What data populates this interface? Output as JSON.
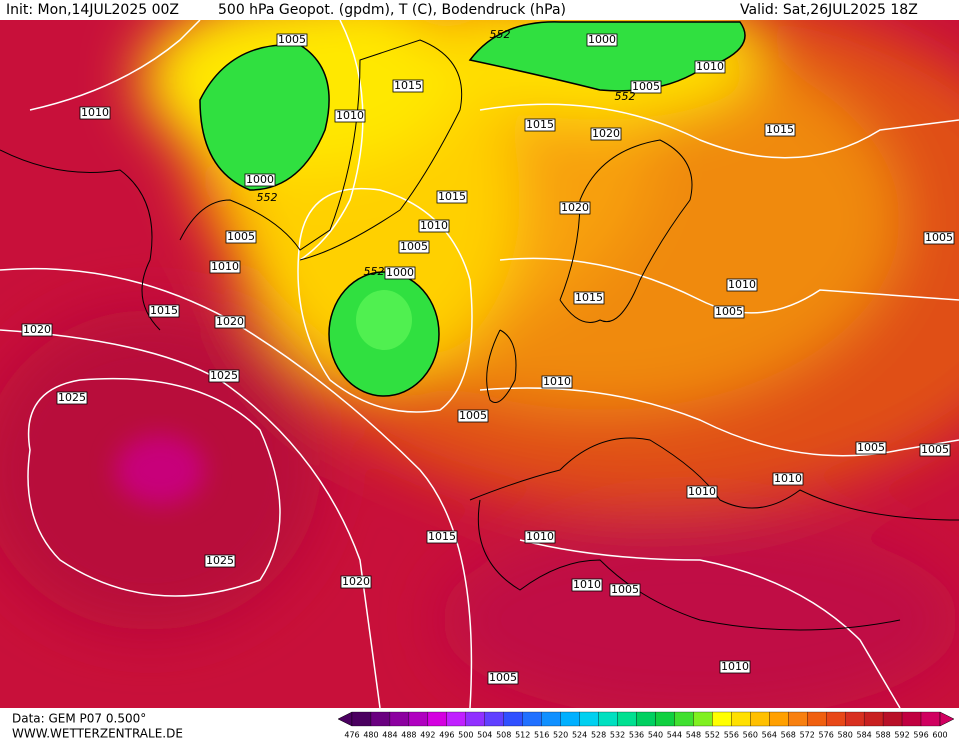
{
  "header": {
    "init": "Init: Mon,14JUL2025 00Z",
    "title": "500 hPa Geopot. (gpdm), T (C), Bodendruck (hPa)",
    "valid": "Valid: Sat,26JUL2025 18Z"
  },
  "isobar_labels": [
    "1005",
    "552",
    "1000",
    "1010",
    "1005",
    "552",
    "1010",
    "1015",
    "1010",
    "1015",
    "1020",
    "1015",
    "1000",
    "552",
    "1015",
    "1020",
    "1005",
    "1010",
    "1005",
    "1005",
    "1010",
    "552",
    "1000",
    "1010",
    "1015",
    "1015",
    "1005",
    "1020",
    "1020",
    "1025",
    "1010",
    "1025",
    "1005",
    "1005",
    "1005",
    "1010",
    "1010",
    "1015",
    "1010",
    "1025",
    "1020",
    "1010",
    "1005",
    "1010",
    "1005"
  ],
  "footer": {
    "data": "Data: GEM P07 0.500°",
    "site": "WWW.WETTERZENTRALE.DE"
  },
  "colorbar": {
    "labels": [
      "476",
      "480",
      "484",
      "488",
      "492",
      "496",
      "500",
      "504",
      "508",
      "512",
      "516",
      "520",
      "524",
      "528",
      "532",
      "536",
      "540",
      "544",
      "548",
      "552",
      "556",
      "560",
      "564",
      "568",
      "572",
      "576",
      "580",
      "584",
      "588",
      "592",
      "596",
      "600"
    ],
    "colors": [
      "#4b0060",
      "#6a0080",
      "#8c00a0",
      "#b000c0",
      "#d400e0",
      "#c020ff",
      "#9030ff",
      "#6040ff",
      "#3050ff",
      "#2070ff",
      "#1090ff",
      "#00b0ff",
      "#00d0f0",
      "#00e0c0",
      "#00e090",
      "#00d060",
      "#10d040",
      "#40e030",
      "#80f020",
      "#ffff00",
      "#ffe000",
      "#ffc000",
      "#ffa000",
      "#f88010",
      "#f06010",
      "#e84818",
      "#d83020",
      "#c82020",
      "#b81028",
      "#c00040",
      "#d00060"
    ]
  }
}
